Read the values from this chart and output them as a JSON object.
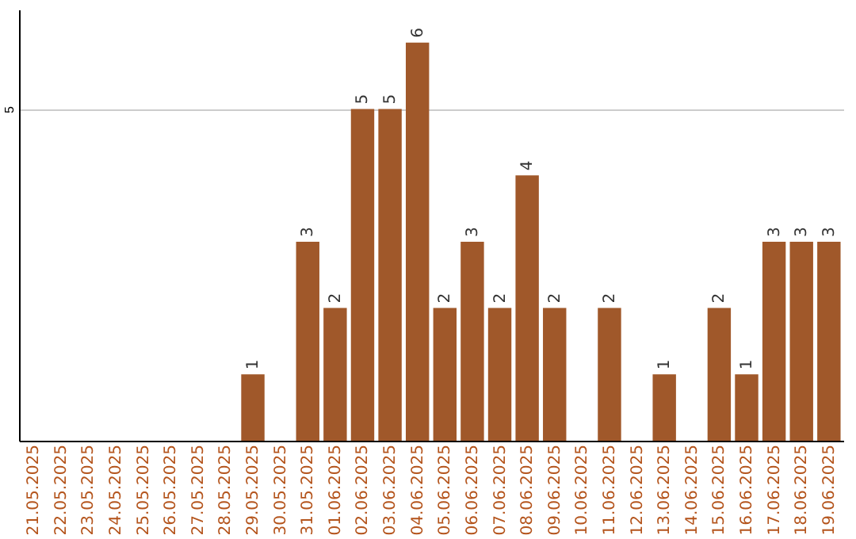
{
  "chart_data": {
    "type": "bar",
    "categories": [
      "21.05.2025",
      "22.05.2025",
      "23.05.2025",
      "24.05.2025",
      "25.05.2025",
      "26.05.2025",
      "27.05.2025",
      "28.05.2025",
      "29.05.2025",
      "30.05.2025",
      "31.05.2025",
      "01.06.2025",
      "02.06.2025",
      "03.06.2025",
      "04.06.2025",
      "05.06.2025",
      "06.06.2025",
      "07.06.2025",
      "08.06.2025",
      "09.06.2025",
      "10.06.2025",
      "11.06.2025",
      "12.06.2025",
      "13.06.2025",
      "14.06.2025",
      "15.06.2025",
      "16.06.2025",
      "17.06.2025",
      "18.06.2025",
      "19.06.2025"
    ],
    "values": [
      0,
      0,
      0,
      0,
      0,
      0,
      0,
      0,
      1,
      0,
      3,
      2,
      5,
      5,
      6,
      2,
      3,
      2,
      4,
      2,
      0,
      2,
      0,
      1,
      0,
      2,
      1,
      3,
      3,
      3
    ],
    "value_labels": [
      null,
      null,
      null,
      null,
      null,
      null,
      null,
      null,
      "1",
      null,
      "3",
      "2",
      "5",
      "5",
      "6",
      "2",
      "3",
      "2",
      "4",
      "2",
      null,
      "2",
      null,
      "1",
      null,
      "2",
      "1",
      "3",
      "3",
      "3"
    ],
    "color": "#a0582a",
    "ylim": [
      0,
      6.5
    ],
    "yticks": [
      5
    ],
    "grid": "y"
  }
}
